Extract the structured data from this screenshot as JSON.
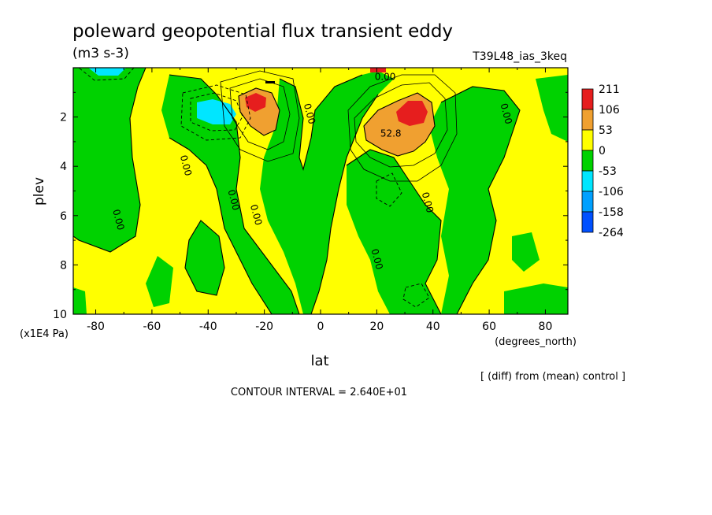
{
  "header": {
    "title": "poleward geopotential flux transient eddy",
    "units": "(m3 s-3)",
    "run_id": "T39L48_ias_3keq"
  },
  "footer": {
    "diff_note": "[ (diff) from (mean) control ]",
    "contour_interval": "CONTOUR INTERVAL = 2.640E+01"
  },
  "colors": {
    "yellow": "#ffff00",
    "green": "#00d200",
    "orange": "#f0a030",
    "red": "#e61e1e",
    "cyan": "#00e6ff",
    "blue1": "#00a0ff",
    "blue2": "#0050ff"
  },
  "chart_data": {
    "type": "heatmap",
    "title": "poleward geopotential flux transient eddy",
    "xlabel": "lat",
    "x_units": "(degrees_north)",
    "ylabel": "plev",
    "y_units": "(x1E4 Pa)",
    "xlim": [
      -88,
      88
    ],
    "ylim": [
      10,
      0
    ],
    "x_ticks": [
      -80,
      -60,
      -40,
      -20,
      0,
      20,
      40,
      60,
      80
    ],
    "y_ticks": [
      2,
      4,
      6,
      8,
      10
    ],
    "contour_interval": 26.4,
    "colorbar": {
      "labels": [
        "211",
        "106",
        "53",
        "0",
        "-53",
        "-106",
        "-158",
        "-264"
      ],
      "colors": [
        "#e61e1e",
        "#f0a030",
        "#ffff00",
        "#00d200",
        "#00e6ff",
        "#00a0ff",
        "#0050ff"
      ]
    },
    "contour_labels": [
      {
        "text": "0.00",
        "lat": 23,
        "plev": 0.5
      },
      {
        "text": "0.00",
        "lat": -5,
        "plev": 1.9
      },
      {
        "text": "0.00",
        "lat": -49,
        "plev": 4.0
      },
      {
        "text": "0.00",
        "lat": -32,
        "plev": 5.4
      },
      {
        "text": "0.00",
        "lat": -24,
        "plev": 6.0
      },
      {
        "text": "0.00",
        "lat": -73,
        "plev": 6.2
      },
      {
        "text": "0.00",
        "lat": 37,
        "plev": 5.5
      },
      {
        "text": "0.00",
        "lat": 19,
        "plev": 7.8
      },
      {
        "text": "0.00",
        "lat": 65,
        "plev": 1.9
      },
      {
        "text": "52.8",
        "lat": 25,
        "plev": 2.8
      }
    ]
  }
}
